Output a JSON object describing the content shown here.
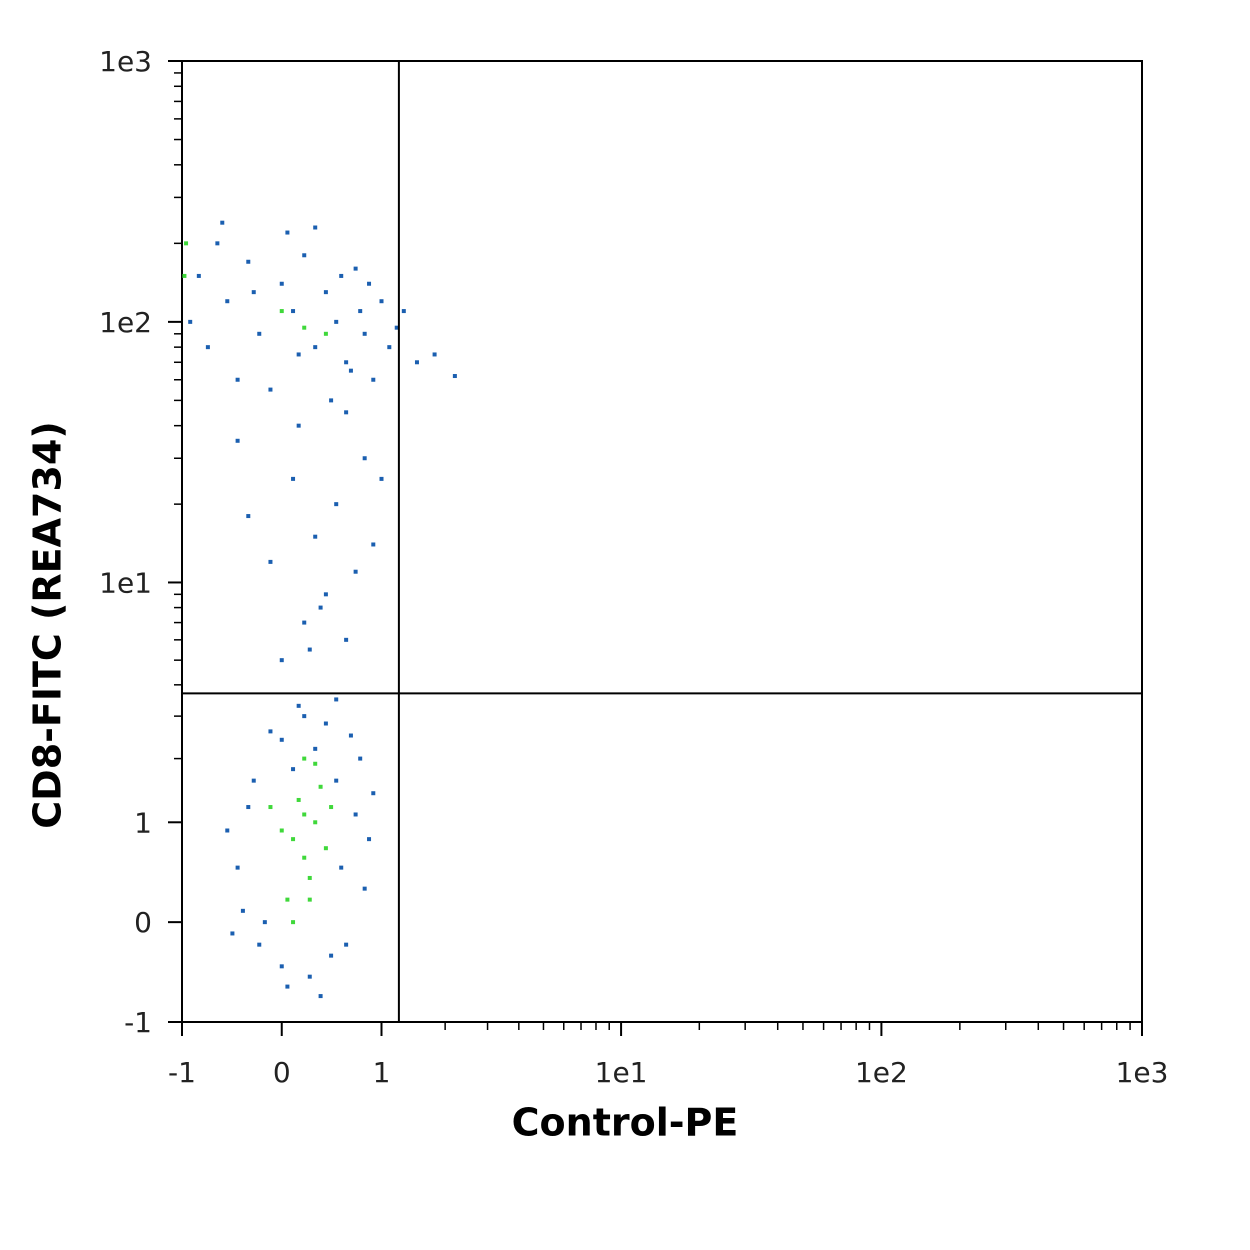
{
  "chart_data": {
    "type": "scatter",
    "xlabel": "Control-PE",
    "ylabel": "CD8-FITC (REA734)",
    "scale": "asinh",
    "xlim": [
      -1,
      1000
    ],
    "ylim": [
      -1,
      1000
    ],
    "xticks": [
      -1,
      0,
      1,
      {
        "value": 10,
        "label": "1e1"
      },
      {
        "value": 100,
        "label": "1e2"
      },
      {
        "value": 1000,
        "label": "1e3"
      }
    ],
    "yticks": [
      -1,
      0,
      1,
      {
        "value": 10,
        "label": "1e1"
      },
      {
        "value": 100,
        "label": "1e2"
      },
      {
        "value": 1000,
        "label": "1e3"
      }
    ],
    "gates": {
      "x": 1.23,
      "y": 3.7
    },
    "series": [
      {
        "color": "#1b5fb0",
        "x": [
          -0.4,
          -0.3,
          -0.2,
          0.0,
          0.1,
          0.3,
          0.5,
          0.7,
          0.8,
          0.6,
          -0.5,
          -0.1,
          0.2,
          0.4,
          0.9,
          0.75,
          -0.35,
          0.05,
          0.25,
          0.45,
          -0.15,
          0.55,
          0.65,
          -0.25,
          0.35,
          0.15,
          0.0,
          0.85,
          -0.45,
          0.5,
          0.0,
          0.2,
          0.4,
          0.6,
          -0.1,
          0.3,
          0.5,
          0.7,
          0.1,
          0.8,
          -0.3,
          0.35,
          0.9,
          0.15,
          -0.4,
          0.6,
          1.0,
          0.25,
          -0.8,
          -0.6,
          -0.5,
          -0.3,
          -0.2,
          0.0,
          0.1,
          0.2,
          0.3,
          0.4,
          0.5,
          0.6,
          0.7,
          0.8,
          0.9,
          1.0,
          1.1,
          1.3,
          1.5,
          -0.9,
          -0.7,
          -0.4,
          -0.1,
          0.45,
          0.65,
          0.85,
          1.2,
          0.05,
          -0.55,
          0.3,
          1.8,
          2.2,
          0.15,
          -0.25,
          0.55,
          0.75
        ],
        "y": [
          0.5,
          1.2,
          -0.2,
          -0.4,
          1.8,
          2.2,
          1.6,
          1.1,
          0.3,
          -0.2,
          0.9,
          2.6,
          3.0,
          2.8,
          1.4,
          2.0,
          0.1,
          -0.6,
          -0.5,
          -0.3,
          0.0,
          0.5,
          2.5,
          1.6,
          -0.7,
          3.3,
          2.4,
          0.8,
          -0.1,
          3.5,
          5,
          7,
          9,
          6,
          12,
          15,
          20,
          11,
          25,
          30,
          18,
          8,
          14,
          40,
          35,
          45,
          25,
          5.5,
          150,
          200,
          120,
          170,
          90,
          140,
          110,
          180,
          80,
          130,
          100,
          70,
          160,
          90,
          60,
          120,
          80,
          110,
          70,
          100,
          80,
          60,
          55,
          50,
          65,
          140,
          95,
          220,
          240,
          230,
          75,
          62,
          75,
          130,
          150,
          110
        ]
      },
      {
        "color": "#3fd83a",
        "x": [
          0.1,
          0.2,
          0.3,
          0.15,
          0.25,
          0.05,
          0.35,
          0.2,
          0.0,
          0.4,
          0.1,
          0.3,
          -0.1,
          0.25,
          0.45,
          0.2,
          0.0,
          0.2,
          -0.95,
          -0.97,
          0.4
        ],
        "y": [
          0.8,
          0.6,
          1.0,
          1.3,
          0.4,
          0.2,
          1.5,
          1.1,
          0.9,
          0.7,
          0.0,
          1.9,
          1.2,
          0.2,
          1.2,
          2.0,
          110,
          95,
          200,
          150,
          90
        ]
      }
    ]
  }
}
